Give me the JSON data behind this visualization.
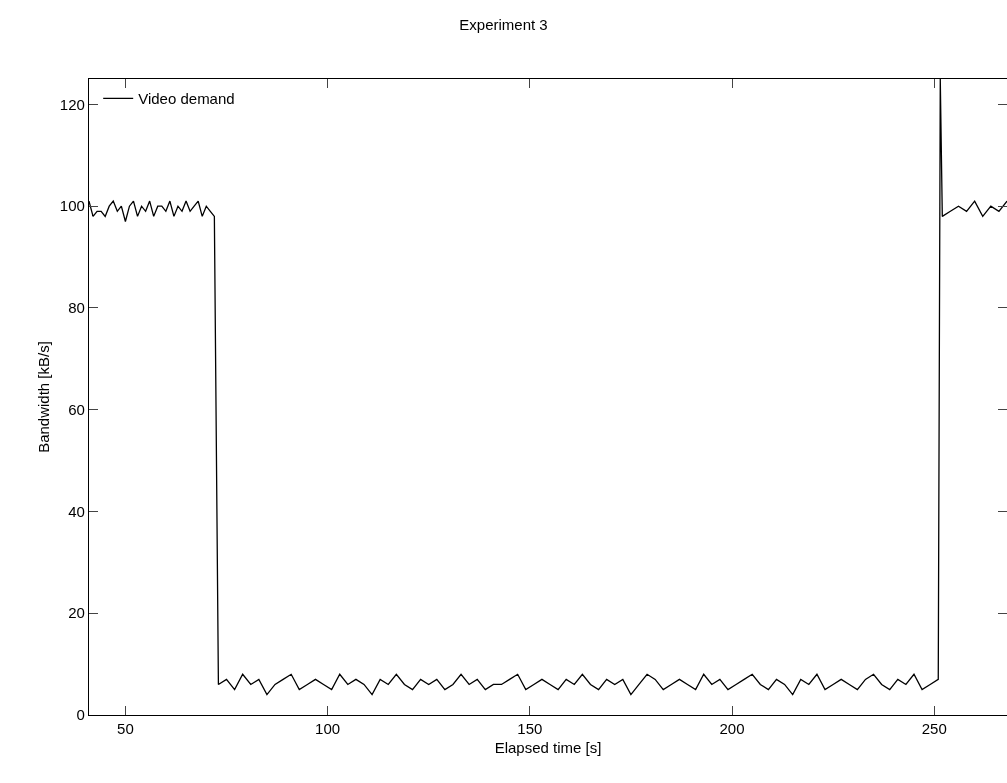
{
  "chart_data": {
    "type": "line",
    "title": "Experiment 3",
    "xlabel": "Elapsed time [s]",
    "ylabel": "Bandwidth [kB/s]",
    "xlim": [
      41,
      268
    ],
    "xticks": [
      50,
      100,
      150,
      200,
      250
    ],
    "ylim": [
      0,
      125
    ],
    "yticks": [
      0,
      20,
      40,
      60,
      80,
      100,
      120
    ],
    "grid": false,
    "legend": "top left",
    "marker": "none",
    "line_style": "solid",
    "series": [
      {
        "name": "Video demand",
        "color": "#000000",
        "x": [
          41,
          42,
          43,
          44,
          45,
          46,
          47,
          48,
          49,
          50,
          51,
          52,
          53,
          54,
          55,
          56,
          57,
          58,
          59,
          60,
          61,
          62,
          63,
          64,
          65,
          66,
          67,
          68,
          69,
          70,
          71,
          72,
          73,
          75,
          77,
          79,
          81,
          83,
          85,
          87,
          89,
          91,
          93,
          95,
          97,
          99,
          101,
          103,
          105,
          107,
          109,
          111,
          113,
          115,
          117,
          119,
          121,
          123,
          125,
          127,
          129,
          131,
          133,
          135,
          137,
          139,
          141,
          143,
          145,
          147,
          149,
          151,
          153,
          155,
          157,
          159,
          161,
          163,
          165,
          167,
          169,
          171,
          173,
          175,
          177,
          179,
          181,
          183,
          185,
          187,
          189,
          191,
          193,
          195,
          197,
          199,
          201,
          203,
          205,
          207,
          209,
          211,
          213,
          215,
          217,
          219,
          221,
          223,
          225,
          227,
          229,
          231,
          233,
          235,
          237,
          239,
          241,
          243,
          245,
          247,
          249,
          251,
          251.5,
          252,
          254,
          256,
          258,
          260,
          262,
          264,
          266,
          268
        ],
        "values": [
          101,
          98,
          99,
          99,
          98,
          100,
          101,
          99,
          100,
          97,
          100,
          101,
          98,
          100,
          99,
          101,
          98,
          100,
          100,
          99,
          101,
          98,
          100,
          99,
          101,
          99,
          100,
          101,
          98,
          100,
          99,
          98,
          6,
          7,
          5,
          8,
          6,
          7,
          4,
          6,
          7,
          8,
          5,
          6,
          7,
          6,
          5,
          8,
          6,
          7,
          6,
          4,
          7,
          6,
          8,
          6,
          5,
          7,
          6,
          7,
          5,
          6,
          8,
          6,
          7,
          5,
          6,
          6,
          7,
          8,
          5,
          6,
          7,
          6,
          5,
          7,
          6,
          8,
          6,
          5,
          7,
          6,
          7,
          4,
          6,
          8,
          7,
          5,
          6,
          7,
          6,
          5,
          8,
          6,
          7,
          5,
          6,
          7,
          8,
          6,
          5,
          7,
          6,
          4,
          7,
          6,
          8,
          5,
          6,
          7,
          6,
          5,
          7,
          8,
          6,
          5,
          7,
          6,
          8,
          5,
          6,
          7,
          125,
          98,
          99,
          100,
          99,
          101,
          98,
          100,
          99,
          101
        ]
      }
    ]
  }
}
